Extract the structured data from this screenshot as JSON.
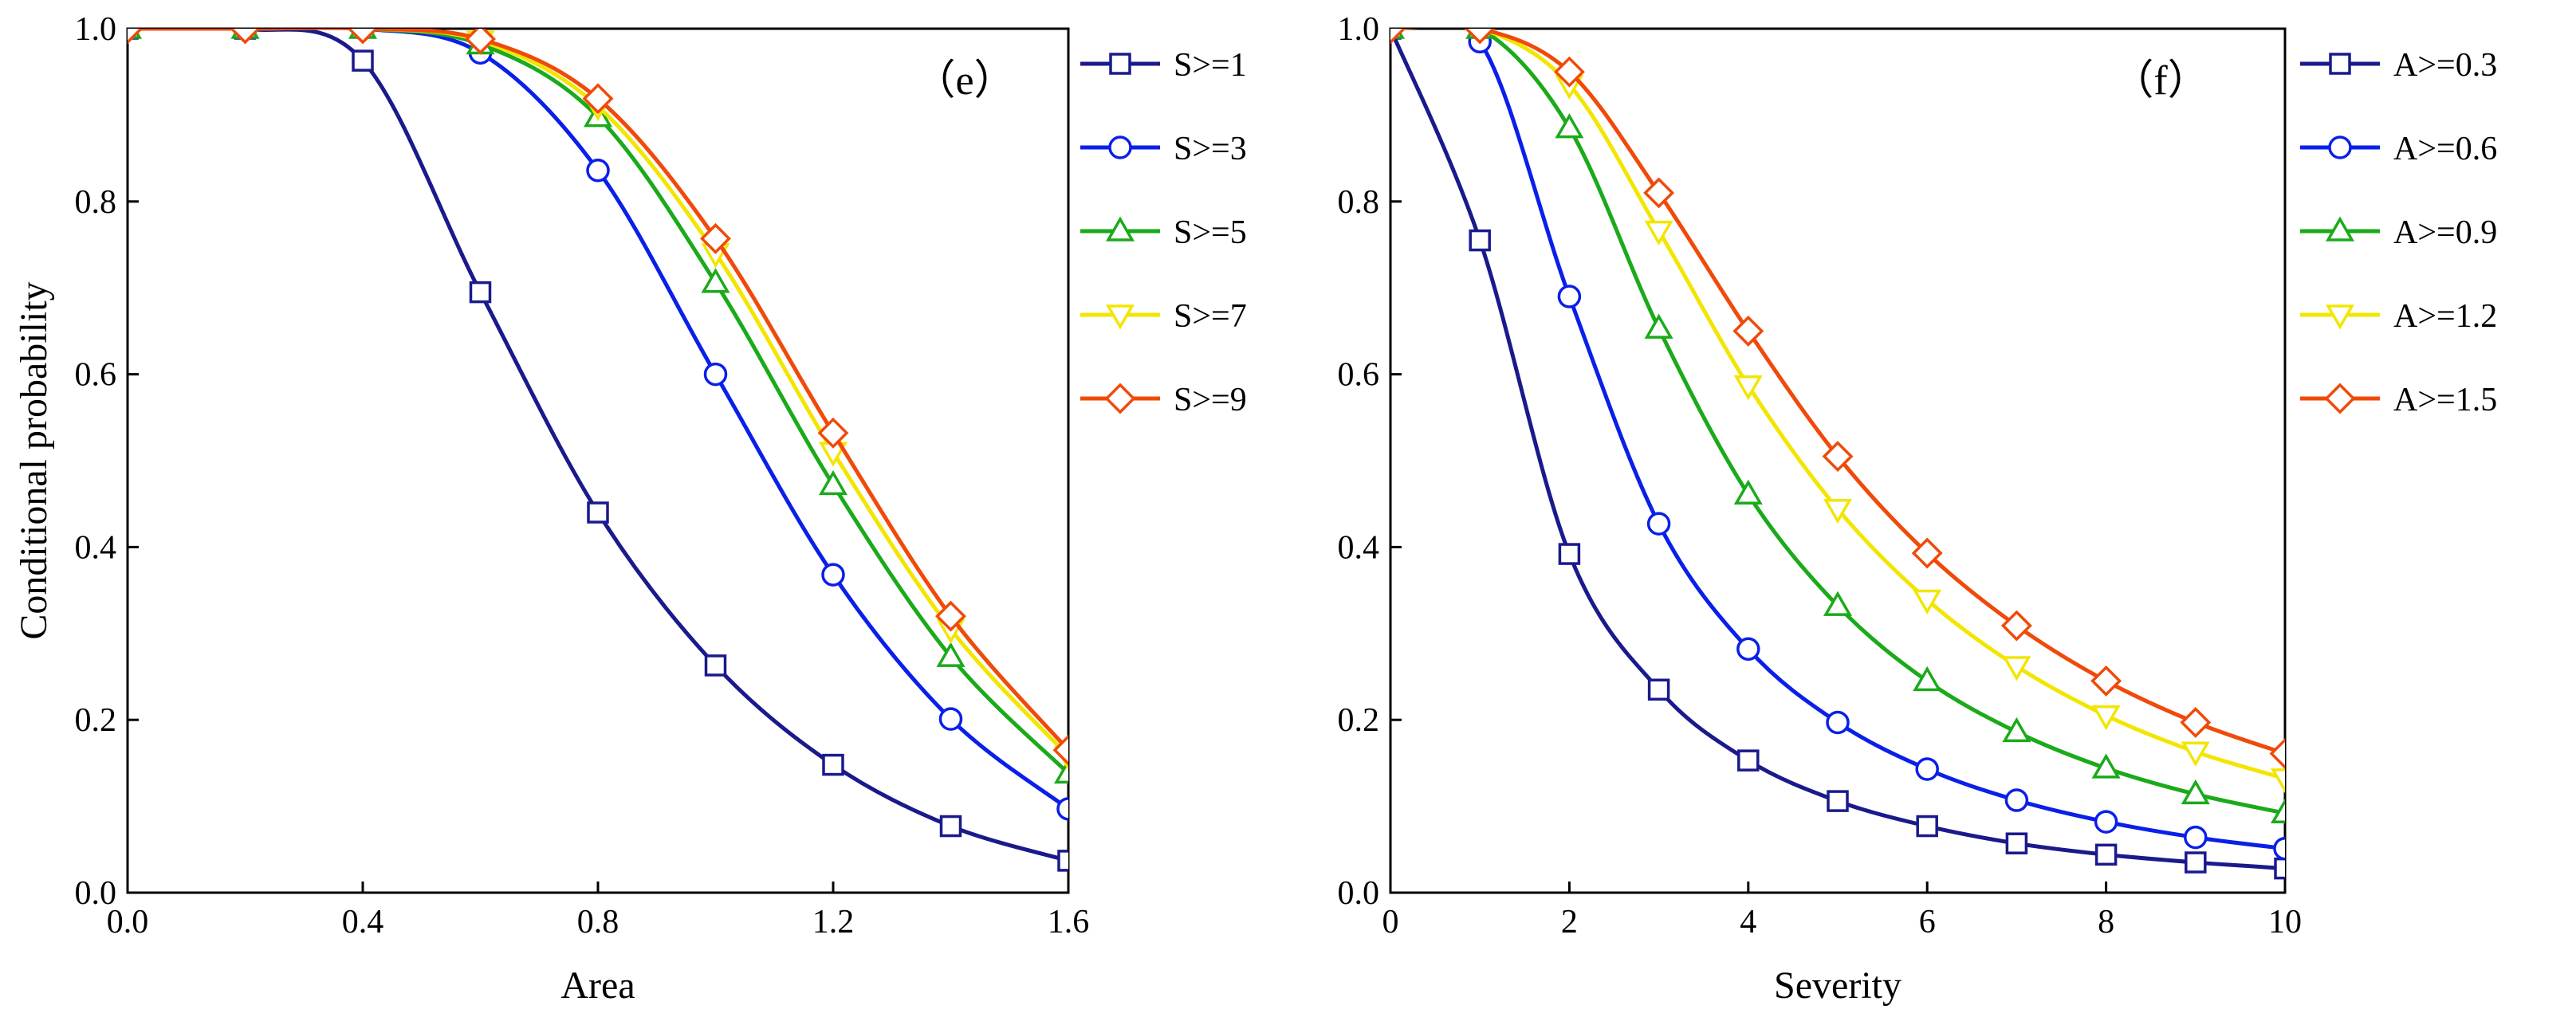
{
  "chart_data": [
    {
      "type": "line",
      "panel_label": "（e）",
      "xlabel": "Area",
      "ylabel": "Conditional probability",
      "xlim": [
        0.0,
        1.6
      ],
      "ylim": [
        0.0,
        1.0
      ],
      "xticks": [
        "0.0",
        "0.4",
        "0.8",
        "1.2",
        "1.6"
      ],
      "yticks": [
        "0.0",
        "0.2",
        "0.4",
        "0.6",
        "0.8",
        "1.0"
      ],
      "x": [
        0.0,
        0.2,
        0.4,
        0.6,
        0.8,
        1.0,
        1.2,
        1.4,
        1.6
      ],
      "series": [
        {
          "name": "S>=1",
          "color": "#1a1a8c",
          "marker": "square",
          "values": [
            1.0,
            1.0,
            0.963,
            0.695,
            0.44,
            0.263,
            0.148,
            0.077,
            0.037
          ]
        },
        {
          "name": "S>=3",
          "color": "#0a1fe8",
          "marker": "circle",
          "values": [
            1.0,
            1.0,
            1.0,
            0.972,
            0.836,
            0.6,
            0.368,
            0.201,
            0.097
          ]
        },
        {
          "name": "S>=5",
          "color": "#1aaa1a",
          "marker": "triangle-up",
          "values": [
            1.0,
            1.0,
            1.0,
            0.982,
            0.898,
            0.706,
            0.472,
            0.273,
            0.138
          ]
        },
        {
          "name": "S>=7",
          "color": "#f2e600",
          "marker": "triangle-down",
          "values": [
            1.0,
            1.0,
            1.0,
            0.986,
            0.91,
            0.74,
            0.51,
            0.305,
            0.158
          ]
        },
        {
          "name": "S>=9",
          "color": "#f04a0a",
          "marker": "diamond",
          "values": [
            1.0,
            1.0,
            1.0,
            0.988,
            0.919,
            0.757,
            0.532,
            0.32,
            0.165
          ]
        }
      ]
    },
    {
      "type": "line",
      "panel_label": "（f）",
      "xlabel": "Severity",
      "ylabel": "",
      "xlim": [
        0,
        10
      ],
      "ylim": [
        0.0,
        1.0
      ],
      "xticks": [
        "0",
        "2",
        "4",
        "6",
        "8",
        "10"
      ],
      "yticks": [
        "0.0",
        "0.2",
        "0.4",
        "0.6",
        "0.8",
        "1.0"
      ],
      "x": [
        0,
        1,
        2,
        3,
        4,
        5,
        6,
        7,
        8,
        9,
        10
      ],
      "series": [
        {
          "name": "A>=0.3",
          "color": "#1a1a8c",
          "marker": "square",
          "values": [
            1.0,
            0.755,
            0.392,
            0.235,
            0.153,
            0.106,
            0.077,
            0.057,
            0.044,
            0.035,
            0.028
          ]
        },
        {
          "name": "A>=0.6",
          "color": "#0a1fe8",
          "marker": "circle",
          "values": [
            1.0,
            0.985,
            0.69,
            0.427,
            0.282,
            0.197,
            0.143,
            0.107,
            0.082,
            0.064,
            0.051
          ]
        },
        {
          "name": "A>=0.9",
          "color": "#1aaa1a",
          "marker": "triangle-up",
          "values": [
            1.0,
            1.0,
            0.885,
            0.653,
            0.461,
            0.332,
            0.245,
            0.186,
            0.144,
            0.114,
            0.092
          ]
        },
        {
          "name": "A>=1.2",
          "color": "#f2e600",
          "marker": "triangle-down",
          "values": [
            1.0,
            1.0,
            0.935,
            0.766,
            0.587,
            0.444,
            0.339,
            0.262,
            0.205,
            0.163,
            0.132
          ]
        },
        {
          "name": "A>=1.5",
          "color": "#f04a0a",
          "marker": "diamond",
          "values": [
            1.0,
            1.0,
            0.95,
            0.81,
            0.65,
            0.505,
            0.393,
            0.309,
            0.245,
            0.197,
            0.161
          ]
        }
      ]
    }
  ]
}
